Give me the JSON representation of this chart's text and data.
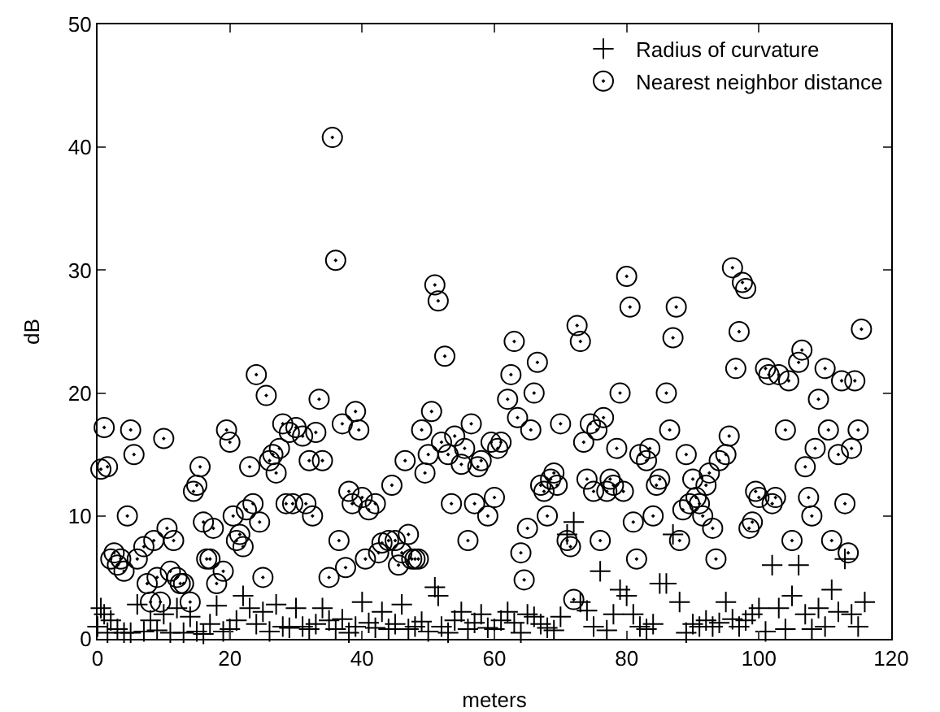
{
  "chart_data": {
    "type": "scatter",
    "xlabel": "meters",
    "ylabel": "dB",
    "xlim": [
      0,
      120
    ],
    "xticks": [
      0,
      20,
      40,
      60,
      80,
      100,
      120
    ],
    "ylim": [
      0,
      50
    ],
    "yticks": [
      0,
      10,
      20,
      30,
      40,
      50
    ],
    "grid": false,
    "legend": "top right",
    "series": [
      {
        "name": "Radius of curvature",
        "color": "#000000",
        "marker": "cross",
        "x": [
          0,
          0.5,
          1,
          1.5,
          2,
          3,
          4,
          5,
          6,
          7,
          8,
          9,
          10,
          11,
          12,
          13,
          14,
          15,
          16,
          17,
          18,
          19,
          20,
          21,
          22,
          23,
          24,
          25,
          26,
          27,
          28,
          29,
          30,
          31,
          32,
          33,
          34,
          35,
          36,
          37,
          38,
          39,
          40,
          41,
          42,
          43,
          44,
          45,
          46,
          47,
          48,
          49,
          50,
          51,
          51.5,
          52,
          53,
          54,
          55,
          56,
          57,
          58,
          59,
          60,
          61,
          62,
          63,
          64,
          65,
          66,
          67,
          68,
          69,
          70,
          71,
          72,
          73,
          74,
          75,
          76,
          77,
          78,
          79,
          80,
          81,
          82,
          83,
          84,
          85,
          86,
          87,
          88,
          89,
          90,
          91,
          92,
          93,
          94,
          95,
          96,
          97,
          98,
          99,
          100,
          101,
          102,
          103,
          104,
          105,
          106,
          107,
          108,
          109,
          110,
          111,
          112,
          113,
          114,
          115,
          116
        ],
        "values": [
          1,
          2.5,
          2,
          0.5,
          1.5,
          0.8,
          0.5,
          0.5,
          2.8,
          0.6,
          1.5,
          0.7,
          2,
          0.5,
          2.5,
          0.5,
          1.8,
          0.6,
          0.4,
          1.2,
          2.7,
          0.6,
          0.8,
          1.5,
          3.5,
          2.5,
          1.2,
          2.2,
          0.6,
          2.8,
          1,
          0.9,
          2.5,
          1,
          0.8,
          1.2,
          2.5,
          1.5,
          0.8,
          1.6,
          0.5,
          1,
          3,
          1.3,
          0.9,
          2.2,
          0.8,
          1.2,
          2.8,
          0.8,
          1,
          1.4,
          0.6,
          4.2,
          3.5,
          1,
          0.5,
          1.5,
          2.2,
          0.8,
          1.3,
          2,
          0.9,
          0.8,
          1.5,
          2.2,
          1.3,
          0.5,
          2,
          1.8,
          1.2,
          0.9,
          0.7,
          1.8,
          8.5,
          9.5,
          3,
          2.3,
          1,
          5.5,
          0.7,
          2,
          4,
          3.5,
          2,
          1,
          0.8,
          1.2,
          4.5,
          4.5,
          8.5,
          3,
          0.5,
          1.2,
          1,
          1.5,
          1,
          1.3,
          3,
          1.6,
          1,
          1.5,
          2,
          2.5,
          0.6,
          6,
          2.5,
          0.8,
          3.5,
          6,
          2,
          0.8,
          2.5,
          1,
          4,
          2.2,
          6.5,
          2,
          1,
          3
        ]
      },
      {
        "name": "Nearest neighbor distance",
        "color": "#000000",
        "marker": "circle",
        "x": [
          0.5,
          1,
          1.5,
          2,
          2.5,
          3,
          3.5,
          4,
          4.5,
          5,
          5.5,
          6,
          7,
          7.5,
          8,
          8.5,
          9,
          9.5,
          10,
          10.5,
          11,
          11.5,
          12,
          12.5,
          13,
          14,
          14.5,
          15,
          15.5,
          16,
          16.5,
          17,
          17.5,
          18,
          19,
          19.5,
          20,
          20.5,
          21,
          21.5,
          22,
          22.5,
          23,
          23.5,
          24,
          24.5,
          25,
          25.5,
          26,
          26.5,
          27,
          27.5,
          28,
          28.5,
          29,
          29.5,
          30,
          31,
          31.5,
          32,
          32.5,
          33,
          33.5,
          34,
          35,
          35.5,
          36,
          36.5,
          37,
          37.5,
          38,
          38.5,
          39,
          39.5,
          40,
          40.5,
          41,
          42,
          42.5,
          43,
          44,
          44.5,
          45,
          45.5,
          46,
          46.5,
          47,
          47.5,
          48,
          48.5,
          49,
          49.5,
          50,
          50.5,
          51,
          51.5,
          52,
          52.5,
          53,
          53.5,
          54,
          55,
          55.5,
          56,
          56.5,
          57,
          57.5,
          58,
          59,
          59.5,
          60,
          60.5,
          61,
          62,
          62.5,
          63,
          63.5,
          64,
          64.5,
          65,
          65.5,
          66,
          66.5,
          67,
          67.5,
          68,
          68.5,
          69,
          69.5,
          70,
          71,
          71.5,
          72,
          72.5,
          73,
          73.5,
          74,
          74.5,
          75,
          75.5,
          76,
          76.5,
          77,
          77.5,
          78,
          78.5,
          79,
          79.5,
          80,
          80.5,
          81,
          81.5,
          82,
          83,
          83.5,
          84,
          84.5,
          85,
          86,
          86.5,
          87,
          87.5,
          88,
          88.5,
          89,
          89.5,
          90,
          90.5,
          91,
          91.5,
          92,
          92.5,
          93,
          93.5,
          94,
          95,
          95.5,
          96,
          96.5,
          97,
          97.5,
          98,
          98.5,
          99,
          99.5,
          100,
          101,
          101.5,
          102,
          102.5,
          103,
          104,
          104.5,
          105,
          106,
          106.5,
          107,
          107.5,
          108,
          108.5,
          109,
          110,
          110.5,
          111,
          112,
          112.5,
          113,
          113.5,
          114,
          114.5,
          115,
          115.5
        ],
        "values": [
          13.8,
          17.2,
          14,
          6.5,
          7,
          6,
          6.5,
          5.5,
          10,
          17,
          15,
          6.5,
          7.5,
          4.5,
          3,
          8,
          5,
          3,
          16.3,
          9,
          5.5,
          8,
          5,
          4.5,
          4.5,
          3,
          12,
          12.5,
          14,
          9.5,
          6.5,
          6.5,
          9,
          4.5,
          5.5,
          17,
          16,
          10,
          8,
          8.5,
          7.5,
          10.5,
          14,
          11,
          21.5,
          9.5,
          5,
          19.8,
          14.5,
          15,
          13.5,
          15.5,
          17.5,
          11,
          16.8,
          11,
          17.2,
          16.5,
          11,
          14.5,
          10,
          16.8,
          19.5,
          14.5,
          5,
          40.8,
          30.8,
          8,
          17.5,
          5.8,
          12,
          11,
          18.5,
          17,
          11.5,
          6.5,
          10.5,
          11,
          7,
          7.8,
          8,
          12.5,
          8,
          6,
          7,
          14.5,
          8.5,
          6.5,
          6.5,
          6.5,
          17,
          13.5,
          15,
          18.5,
          28.8,
          27.5,
          16,
          23,
          15,
          11,
          16.5,
          14.2,
          15.5,
          8,
          17.5,
          11,
          14,
          14.5,
          10,
          16,
          11.5,
          15.5,
          16,
          19.5,
          21.5,
          24.2,
          18,
          7,
          4.8,
          9,
          17,
          20,
          22.5,
          12.5,
          12,
          10,
          13,
          13.5,
          12.5,
          17.5,
          8,
          7.5,
          3.2,
          25.5,
          24.2,
          16,
          13,
          17.5,
          12,
          17,
          8,
          18,
          12,
          13,
          12.5,
          15.5,
          20,
          12,
          29.5,
          27,
          9.5,
          6.5,
          15,
          14.5,
          15.5,
          10,
          12.5,
          13,
          20,
          17,
          24.5,
          27,
          8,
          10.5,
          15,
          11,
          13,
          11.5,
          11,
          10,
          12.5,
          13.5,
          9,
          6.5,
          14.5,
          15,
          16.5,
          30.2,
          22,
          25,
          29,
          28.5,
          9,
          9.5,
          12,
          11.5,
          22,
          21.5,
          11,
          11.5,
          21.5,
          17,
          21,
          8,
          22.5,
          23.5,
          14,
          11.5,
          10,
          15.5,
          19.5,
          22,
          17,
          8,
          15,
          21,
          11,
          7,
          15.5,
          21,
          17,
          25.2
        ]
      }
    ]
  }
}
